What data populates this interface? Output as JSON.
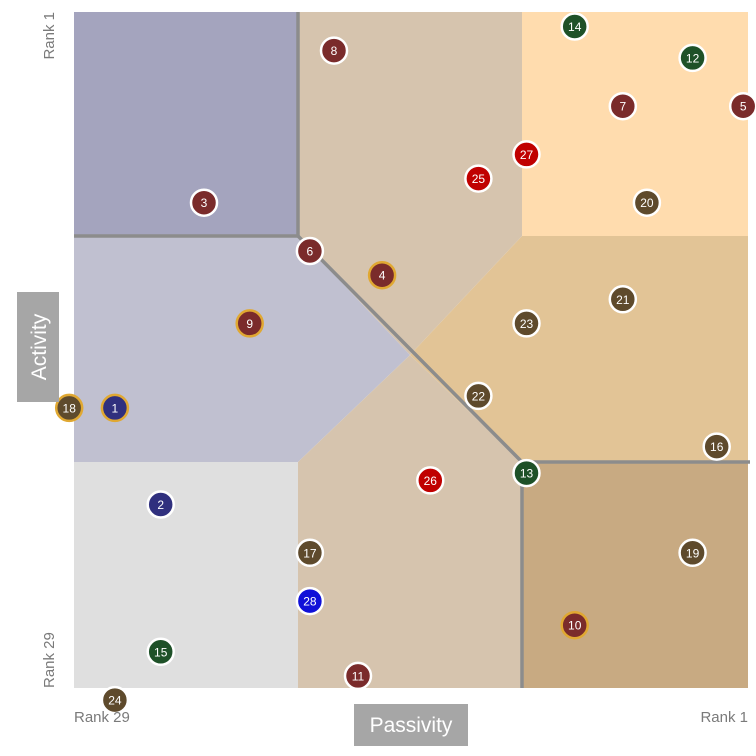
{
  "chart_data": {
    "type": "scatter",
    "title": "",
    "x_axis": {
      "label": "Passivity",
      "min_tick_label": "Rank 29",
      "max_tick_label": "Rank 1",
      "range": [
        29,
        1
      ]
    },
    "y_axis": {
      "label": "Activity",
      "min_tick_label": "Rank 29",
      "max_tick_label": "Rank 1",
      "range": [
        29,
        1
      ]
    },
    "grid": false,
    "legend": "none",
    "region_colors": {
      "top_left": "#a4a4be",
      "top_middle": "#d6c4ae",
      "top_right": "#ffdcae",
      "middle_left": "#c0c0d0",
      "center_right": "#e2c496",
      "bottom_left": "#dfdfdf",
      "bottom_middle": "#d6c4ae",
      "bottom_right": "#c8aa82"
    },
    "point_colors": {
      "maroon": "#7a2b2b",
      "red": "#c00000",
      "green": "#1e5128",
      "brown": "#5e4a2c",
      "navy": "#30307e",
      "blue": "#1010d8",
      "gold_ring": "#e0a832",
      "white_ring": "#ffffff"
    },
    "points": [
      {
        "label": "1",
        "passivity": 27.3,
        "activity": 17.4,
        "color": "navy",
        "ring": "gold_ring"
      },
      {
        "label": "2",
        "passivity": 25.4,
        "activity": 21.4,
        "color": "navy",
        "ring": "white_ring"
      },
      {
        "label": "3",
        "passivity": 23.6,
        "activity": 8.9,
        "color": "maroon",
        "ring": "white_ring"
      },
      {
        "label": "4",
        "passivity": 16.2,
        "activity": 11.9,
        "color": "maroon",
        "ring": "gold_ring"
      },
      {
        "label": "5",
        "passivity": 1.2,
        "activity": 4.9,
        "color": "maroon",
        "ring": "white_ring"
      },
      {
        "label": "6",
        "passivity": 19.2,
        "activity": 10.9,
        "color": "maroon",
        "ring": "white_ring"
      },
      {
        "label": "7",
        "passivity": 6.2,
        "activity": 4.9,
        "color": "maroon",
        "ring": "white_ring"
      },
      {
        "label": "8",
        "passivity": 18.2,
        "activity": 2.6,
        "color": "maroon",
        "ring": "white_ring"
      },
      {
        "label": "9",
        "passivity": 21.7,
        "activity": 13.9,
        "color": "maroon",
        "ring": "gold_ring"
      },
      {
        "label": "10",
        "passivity": 8.2,
        "activity": 26.4,
        "color": "maroon",
        "ring": "gold_ring"
      },
      {
        "label": "11",
        "passivity": 17.2,
        "activity": 28.5,
        "color": "maroon",
        "ring": "white_ring"
      },
      {
        "label": "12",
        "passivity": 3.3,
        "activity": 2.9,
        "color": "green",
        "ring": "white_ring"
      },
      {
        "label": "13",
        "passivity": 10.2,
        "activity": 20.1,
        "color": "green",
        "ring": "white_ring"
      },
      {
        "label": "14",
        "passivity": 8.2,
        "activity": 1.6,
        "color": "green",
        "ring": "white_ring"
      },
      {
        "label": "15",
        "passivity": 25.4,
        "activity": 27.5,
        "color": "green",
        "ring": "white_ring"
      },
      {
        "label": "16",
        "passivity": 2.3,
        "activity": 19.0,
        "color": "brown",
        "ring": "white_ring"
      },
      {
        "label": "17",
        "passivity": 19.2,
        "activity": 23.4,
        "color": "brown",
        "ring": "white_ring"
      },
      {
        "label": "18",
        "passivity": 29.2,
        "activity": 17.4,
        "color": "brown",
        "ring": "gold_ring"
      },
      {
        "label": "19",
        "passivity": 3.3,
        "activity": 23.4,
        "color": "brown",
        "ring": "white_ring"
      },
      {
        "label": "20",
        "passivity": 5.2,
        "activity": 8.9,
        "color": "brown",
        "ring": "white_ring"
      },
      {
        "label": "21",
        "passivity": 6.2,
        "activity": 12.9,
        "color": "brown",
        "ring": "white_ring"
      },
      {
        "label": "22",
        "passivity": 12.2,
        "activity": 16.9,
        "color": "brown",
        "ring": "white_ring"
      },
      {
        "label": "23",
        "passivity": 10.2,
        "activity": 13.9,
        "color": "brown",
        "ring": "white_ring"
      },
      {
        "label": "24",
        "passivity": 27.3,
        "activity": 29.5,
        "color": "brown",
        "ring": "white_ring"
      },
      {
        "label": "25",
        "passivity": 12.2,
        "activity": 7.9,
        "color": "red",
        "ring": "white_ring"
      },
      {
        "label": "26",
        "passivity": 14.2,
        "activity": 20.4,
        "color": "red",
        "ring": "white_ring"
      },
      {
        "label": "27",
        "passivity": 10.2,
        "activity": 6.9,
        "color": "red",
        "ring": "white_ring"
      },
      {
        "label": "28",
        "passivity": 19.2,
        "activity": 25.4,
        "color": "blue",
        "ring": "white_ring"
      }
    ]
  }
}
